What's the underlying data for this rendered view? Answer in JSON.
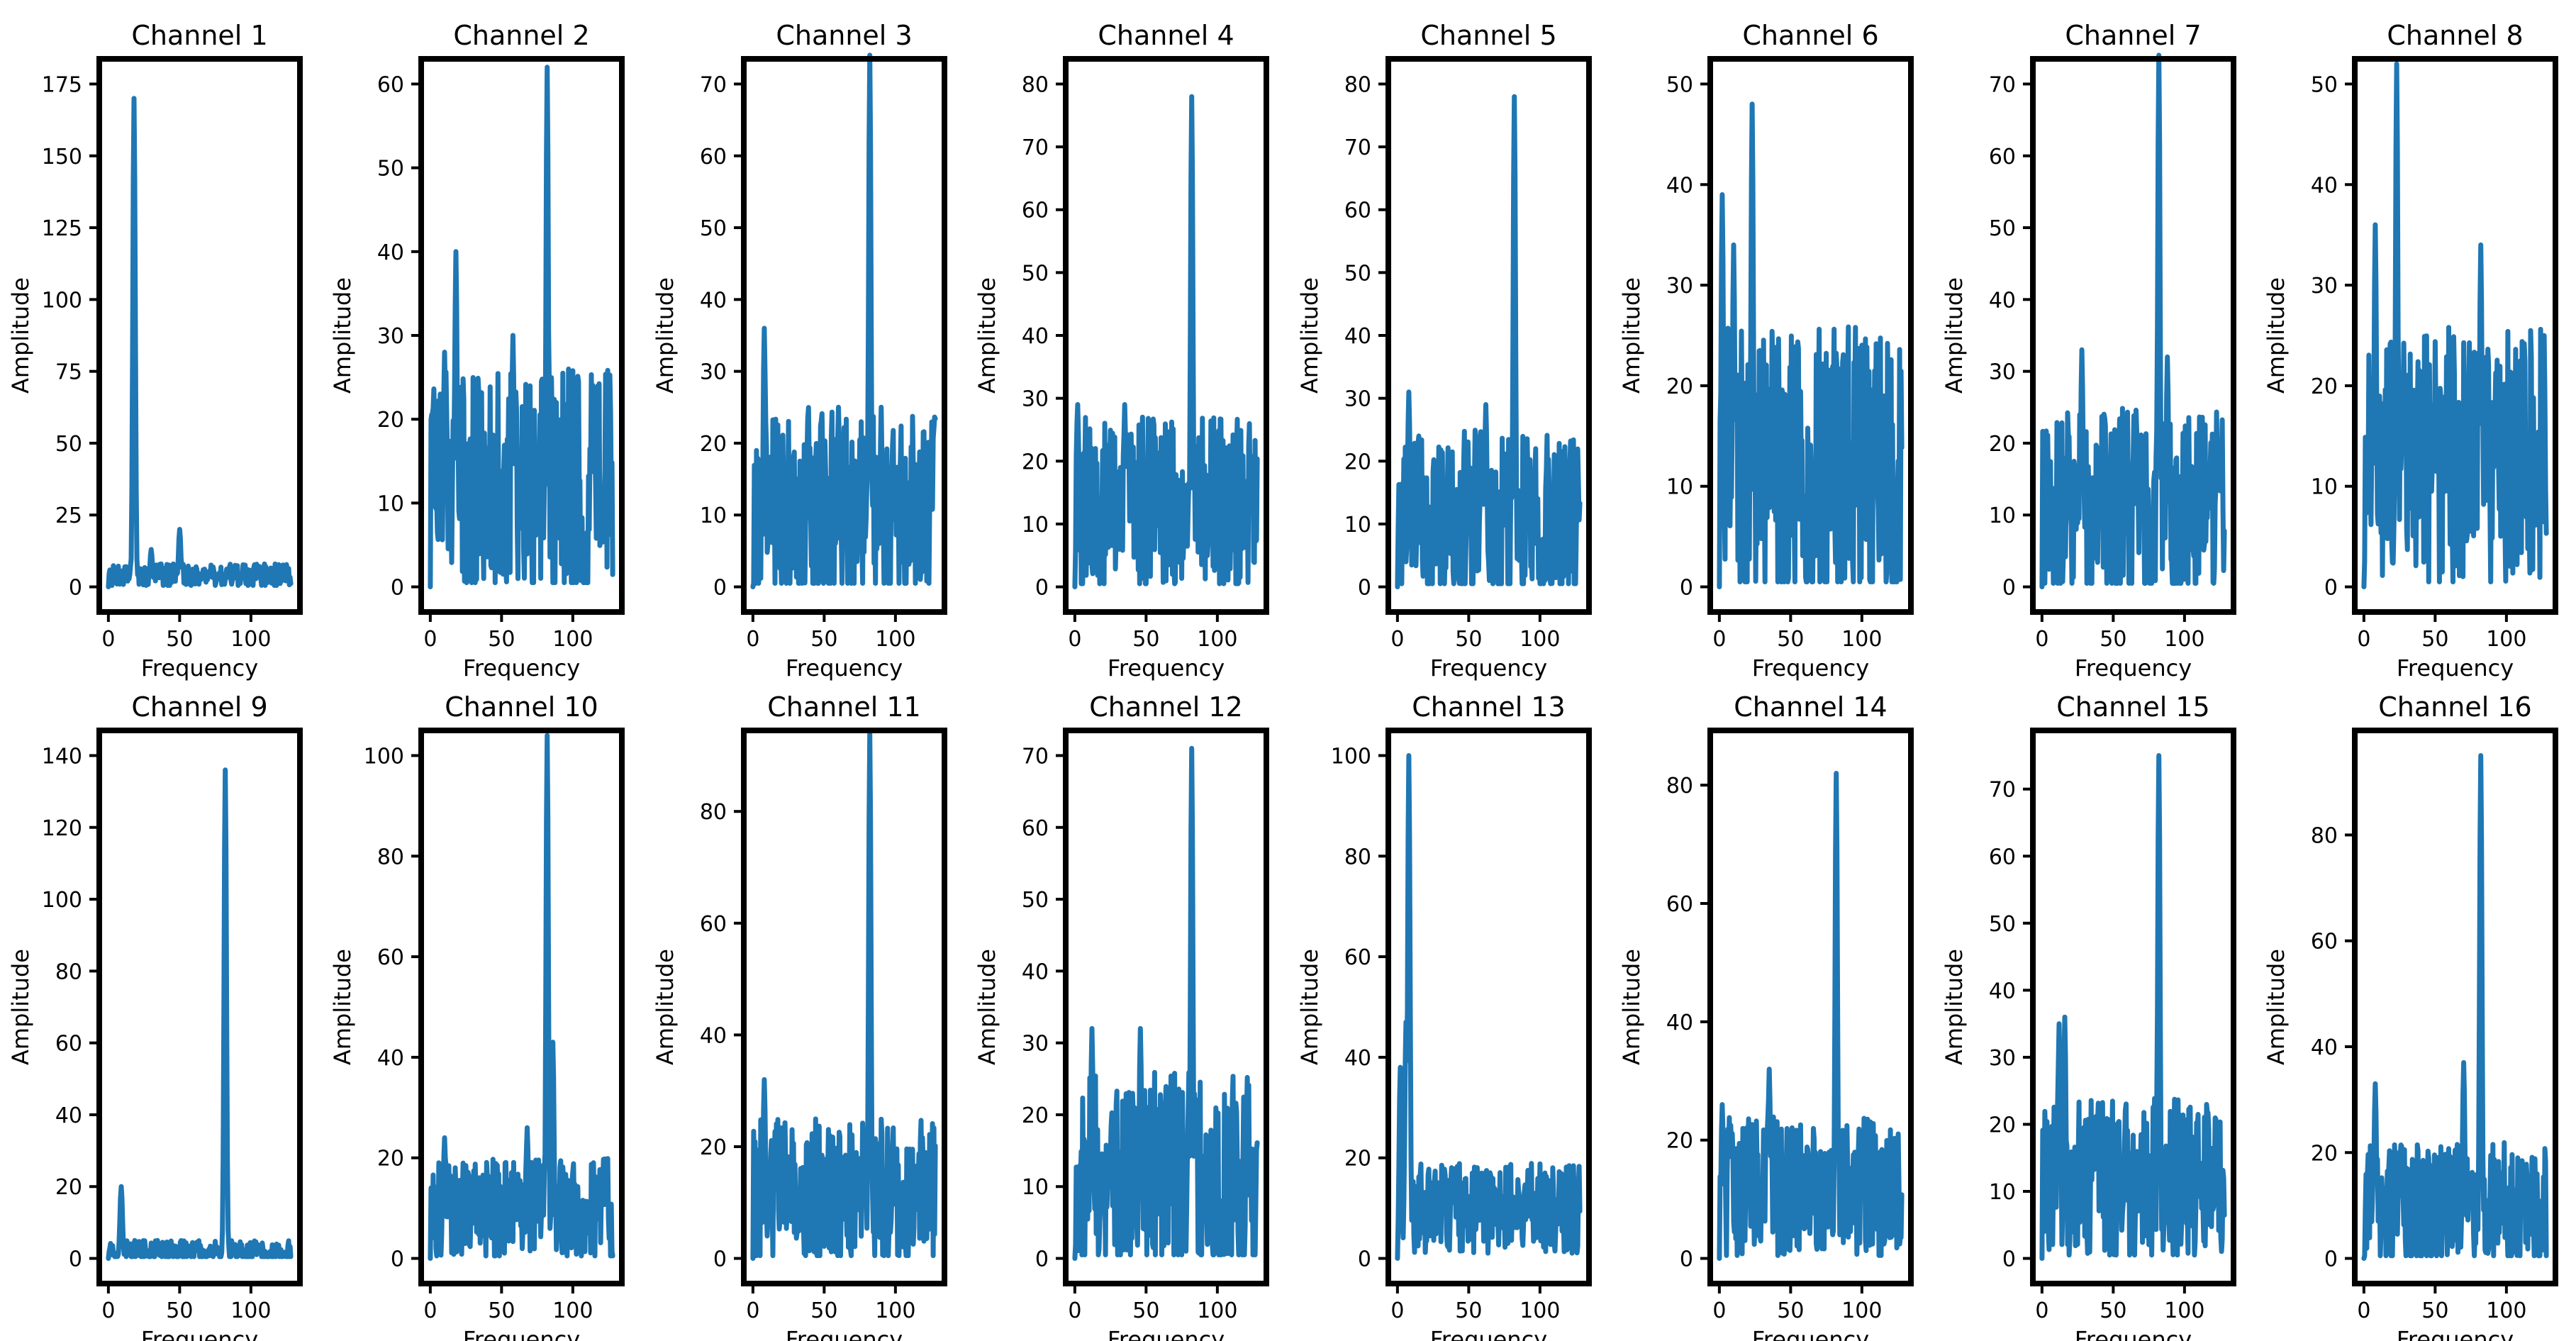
{
  "figure": {
    "line_color": "#1f77b4",
    "frame_color": "#000000"
  },
  "chart_data": [
    {
      "type": "line",
      "title": "Channel 1",
      "xlabel": "Frequency",
      "ylabel": "Amplitude",
      "xlim": [
        0,
        128
      ],
      "ylim": [
        0,
        175
      ],
      "xticks": [
        0,
        50,
        100
      ],
      "yticks": [
        0,
        25,
        50,
        75,
        100,
        125,
        150,
        175
      ],
      "peaks": [
        [
          18,
          170
        ],
        [
          50,
          20
        ],
        [
          30,
          13
        ]
      ],
      "noise_base": 4,
      "noise_amp": 4,
      "seed": 1
    },
    {
      "type": "line",
      "title": "Channel 2",
      "xlabel": "Frequency",
      "ylabel": "Amplitude",
      "xlim": [
        0,
        128
      ],
      "ylim": [
        0,
        60
      ],
      "xticks": [
        0,
        50,
        100
      ],
      "yticks": [
        0,
        10,
        20,
        30,
        40,
        50,
        60
      ],
      "peaks": [
        [
          82,
          62
        ],
        [
          18,
          40
        ],
        [
          10,
          28
        ],
        [
          58,
          30
        ]
      ],
      "noise_base": 12,
      "noise_amp": 14,
      "seed": 2
    },
    {
      "type": "line",
      "title": "Channel 3",
      "xlabel": "Frequency",
      "ylabel": "Amplitude",
      "xlim": [
        0,
        128
      ],
      "ylim": [
        0,
        70
      ],
      "xticks": [
        0,
        50,
        100
      ],
      "yticks": [
        0,
        10,
        20,
        30,
        40,
        50,
        60,
        70
      ],
      "peaks": [
        [
          82,
          74
        ],
        [
          8,
          36
        ],
        [
          60,
          25
        ]
      ],
      "noise_base": 11,
      "noise_amp": 14,
      "seed": 3
    },
    {
      "type": "line",
      "title": "Channel 4",
      "xlabel": "Frequency",
      "ylabel": "Amplitude",
      "xlim": [
        0,
        128
      ],
      "ylim": [
        0,
        80
      ],
      "xticks": [
        0,
        50,
        100
      ],
      "yticks": [
        0,
        10,
        20,
        30,
        40,
        50,
        60,
        70,
        80
      ],
      "peaks": [
        [
          82,
          78
        ],
        [
          2,
          29
        ],
        [
          35,
          29
        ]
      ],
      "noise_base": 13,
      "noise_amp": 14,
      "seed": 4
    },
    {
      "type": "line",
      "title": "Channel 5",
      "xlabel": "Frequency",
      "ylabel": "Amplitude",
      "xlim": [
        0,
        128
      ],
      "ylim": [
        0,
        80
      ],
      "xticks": [
        0,
        50,
        100
      ],
      "yticks": [
        0,
        10,
        20,
        30,
        40,
        50,
        60,
        70,
        80
      ],
      "peaks": [
        [
          82,
          78
        ],
        [
          8,
          31
        ],
        [
          62,
          29
        ]
      ],
      "noise_base": 11,
      "noise_amp": 14,
      "seed": 5
    },
    {
      "type": "line",
      "title": "Channel 6",
      "xlabel": "Frequency",
      "ylabel": "Amplitude",
      "xlim": [
        0,
        128
      ],
      "ylim": [
        0,
        50
      ],
      "xticks": [
        0,
        50,
        100
      ],
      "yticks": [
        0,
        10,
        20,
        30,
        40,
        50
      ],
      "peaks": [
        [
          23,
          48
        ],
        [
          2,
          39
        ],
        [
          10,
          34
        ]
      ],
      "noise_base": 12,
      "noise_amp": 14,
      "seed": 6
    },
    {
      "type": "line",
      "title": "Channel 7",
      "xlabel": "Frequency",
      "ylabel": "Amplitude",
      "xlim": [
        0,
        128
      ],
      "ylim": [
        0,
        70
      ],
      "xticks": [
        0,
        50,
        100
      ],
      "yticks": [
        0,
        10,
        20,
        30,
        40,
        50,
        60,
        70
      ],
      "peaks": [
        [
          82,
          74
        ],
        [
          28,
          33
        ],
        [
          88,
          32
        ]
      ],
      "noise_base": 11,
      "noise_amp": 14,
      "seed": 7
    },
    {
      "type": "line",
      "title": "Channel 8",
      "xlabel": "Frequency",
      "ylabel": "Amplitude",
      "xlim": [
        0,
        128
      ],
      "ylim": [
        0,
        50
      ],
      "xticks": [
        0,
        50,
        100
      ],
      "yticks": [
        0,
        10,
        20,
        30,
        40,
        50
      ],
      "peaks": [
        [
          23,
          52
        ],
        [
          8,
          36
        ],
        [
          82,
          34
        ]
      ],
      "noise_base": 13,
      "noise_amp": 13,
      "seed": 8
    },
    {
      "type": "line",
      "title": "Channel 9",
      "xlabel": "Frequency",
      "ylabel": "Amplitude",
      "xlim": [
        0,
        128
      ],
      "ylim": [
        0,
        140
      ],
      "xticks": [
        0,
        50,
        100
      ],
      "yticks": [
        0,
        20,
        40,
        60,
        80,
        100,
        120,
        140
      ],
      "peaks": [
        [
          82,
          136
        ],
        [
          9,
          20
        ]
      ],
      "noise_base": 2,
      "noise_amp": 3,
      "seed": 9
    },
    {
      "type": "line",
      "title": "Channel 10",
      "xlabel": "Frequency",
      "ylabel": "Amplitude",
      "xlim": [
        0,
        128
      ],
      "ylim": [
        0,
        100
      ],
      "xticks": [
        0,
        50,
        100
      ],
      "yticks": [
        0,
        20,
        40,
        60,
        80,
        100
      ],
      "peaks": [
        [
          82,
          104
        ],
        [
          86,
          43
        ],
        [
          10,
          24
        ],
        [
          68,
          26
        ]
      ],
      "noise_base": 10,
      "noise_amp": 10,
      "seed": 10
    },
    {
      "type": "line",
      "title": "Channel 11",
      "xlabel": "Frequency",
      "ylabel": "Amplitude",
      "xlim": [
        0,
        128
      ],
      "ylim": [
        0,
        90
      ],
      "xticks": [
        0,
        50,
        100
      ],
      "yticks": [
        0,
        20,
        40,
        60,
        80
      ],
      "peaks": [
        [
          82,
          94
        ],
        [
          8,
          32
        ]
      ],
      "noise_base": 11,
      "noise_amp": 14,
      "seed": 11
    },
    {
      "type": "line",
      "title": "Channel 12",
      "xlabel": "Frequency",
      "ylabel": "Amplitude",
      "xlim": [
        0,
        128
      ],
      "ylim": [
        0,
        70
      ],
      "xticks": [
        0,
        50,
        100
      ],
      "yticks": [
        0,
        10,
        20,
        30,
        40,
        50,
        60,
        70
      ],
      "peaks": [
        [
          82,
          71
        ],
        [
          12,
          32
        ],
        [
          46,
          32
        ]
      ],
      "noise_base": 12,
      "noise_amp": 14,
      "seed": 12
    },
    {
      "type": "line",
      "title": "Channel 13",
      "xlabel": "Frequency",
      "ylabel": "Amplitude",
      "xlim": [
        0,
        128
      ],
      "ylim": [
        0,
        100
      ],
      "xticks": [
        0,
        50,
        100
      ],
      "yticks": [
        0,
        20,
        40,
        60,
        80,
        100
      ],
      "peaks": [
        [
          8,
          100
        ],
        [
          6,
          47
        ],
        [
          2,
          38
        ]
      ],
      "noise_base": 10,
      "noise_amp": 9,
      "seed": 13
    },
    {
      "type": "line",
      "title": "Channel 14",
      "xlabel": "Frequency",
      "ylabel": "Amplitude",
      "xlim": [
        0,
        128
      ],
      "ylim": [
        0,
        85
      ],
      "xticks": [
        0,
        50,
        100
      ],
      "yticks": [
        0,
        20,
        40,
        60,
        80
      ],
      "peaks": [
        [
          82,
          82
        ],
        [
          2,
          26
        ],
        [
          35,
          32
        ]
      ],
      "noise_base": 12,
      "noise_amp": 12,
      "seed": 14
    },
    {
      "type": "line",
      "title": "Channel 15",
      "xlabel": "Frequency",
      "ylabel": "Amplitude",
      "xlim": [
        0,
        128
      ],
      "ylim": [
        0,
        75
      ],
      "xticks": [
        0,
        50,
        100
      ],
      "yticks": [
        0,
        10,
        20,
        30,
        40,
        50,
        60,
        70
      ],
      "peaks": [
        [
          82,
          75
        ],
        [
          16,
          36
        ],
        [
          12,
          35
        ]
      ],
      "noise_base": 12,
      "noise_amp": 12,
      "seed": 15
    },
    {
      "type": "line",
      "title": "Channel 16",
      "xlabel": "Frequency",
      "ylabel": "Amplitude",
      "xlim": [
        0,
        128
      ],
      "ylim": [
        0,
        95
      ],
      "xticks": [
        0,
        50,
        100
      ],
      "yticks": [
        0,
        20,
        40,
        60,
        80
      ],
      "peaks": [
        [
          82,
          95
        ],
        [
          8,
          33
        ],
        [
          70,
          37
        ]
      ],
      "noise_base": 10,
      "noise_amp": 12,
      "seed": 16
    }
  ]
}
